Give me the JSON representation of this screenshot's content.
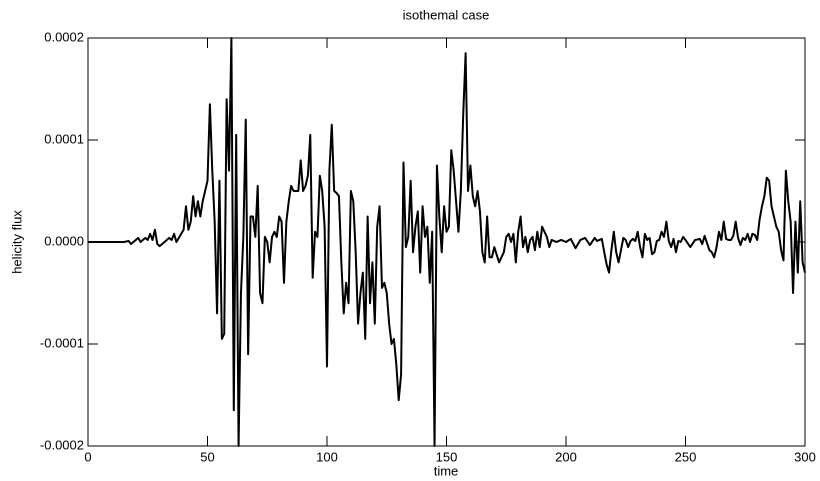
{
  "chart_data": {
    "type": "line",
    "title": "isothemal case",
    "x_label": "time",
    "y_label": "helicity flux",
    "color": "#000000",
    "xlim": [
      0,
      300
    ],
    "xticks": [
      0,
      50,
      100,
      150,
      200,
      250,
      300
    ],
    "ylim": [
      -0.0002,
      0.0002
    ],
    "yticks": [
      {
        "value": -0.0002,
        "label": "-0.0002"
      },
      {
        "value": -0.0001,
        "label": "-0.0001"
      },
      {
        "value": 0,
        "label": "0.0000"
      },
      {
        "value": 0.0001,
        "label": "0.0001"
      },
      {
        "value": 0.0002,
        "label": "0.0002"
      }
    ],
    "x": [
      0,
      10,
      15,
      17,
      18,
      20,
      21,
      22,
      24,
      25,
      26,
      27,
      28,
      29,
      30,
      32,
      34,
      35,
      36,
      37,
      38,
      40,
      41,
      42,
      43,
      44,
      45,
      46,
      47,
      48,
      49,
      50,
      51,
      52,
      53,
      54,
      55,
      56,
      57,
      58,
      59,
      60,
      61,
      62,
      63,
      64,
      65,
      66,
      67,
      68,
      69,
      70,
      71,
      72,
      73,
      74,
      75,
      76,
      77,
      78,
      79,
      80,
      81,
      82,
      83,
      84,
      85,
      86,
      88,
      89,
      90,
      91,
      92,
      93,
      94,
      95,
      96,
      97,
      98,
      99,
      100,
      101,
      102,
      103,
      104,
      105,
      106,
      107,
      108,
      109,
      110,
      111,
      112,
      113,
      114,
      115,
      116,
      117,
      118,
      119,
      120,
      121,
      122,
      123,
      124,
      125,
      126,
      127,
      128,
      129,
      130,
      131,
      132,
      133,
      134,
      135,
      136,
      137,
      138,
      139,
      140,
      141,
      142,
      143,
      144,
      145,
      146,
      147,
      148,
      149,
      150,
      151,
      152,
      153,
      154,
      155,
      156,
      157,
      158,
      159,
      160,
      161,
      162,
      163,
      164,
      165,
      166,
      167,
      168,
      169,
      170,
      172,
      174,
      175,
      176,
      177,
      178,
      179,
      180,
      181,
      182,
      183,
      184,
      185,
      186,
      187,
      188,
      189,
      190,
      192,
      193,
      194,
      196,
      198,
      200,
      202,
      204,
      206,
      208,
      210,
      212,
      213,
      215,
      216,
      217,
      218,
      219,
      220,
      221,
      222,
      223,
      224,
      225,
      226,
      227,
      228,
      229,
      230,
      231,
      232,
      233,
      234,
      235,
      236,
      237,
      238,
      239,
      240,
      241,
      242,
      243,
      244,
      245,
      246,
      247,
      248,
      249,
      250,
      252,
      254,
      256,
      257,
      258,
      260,
      261,
      262,
      263,
      264,
      265,
      266,
      267,
      268,
      269,
      270,
      271,
      272,
      273,
      274,
      275,
      276,
      277,
      278,
      279,
      280,
      281,
      282,
      283,
      284,
      285,
      286,
      287,
      288,
      289,
      290,
      291,
      292,
      293,
      294,
      295,
      296,
      297,
      298,
      299,
      300
    ],
    "values": [
      0,
      0,
      0,
      1e-06,
      -2e-06,
      2e-06,
      4e-06,
      0,
      4e-06,
      2e-06,
      8e-06,
      2e-06,
      1.2e-05,
      -2e-06,
      -4e-06,
      0,
      4e-06,
      2e-06,
      8e-06,
      0,
      4e-06,
      1.2e-05,
      3.5e-05,
      1.2e-05,
      2e-05,
      4.5e-05,
      2.5e-05,
      4e-05,
      2.5e-05,
      4e-05,
      5e-05,
      6e-05,
      0.000135,
      7e-05,
      2e-05,
      -7e-05,
      6e-05,
      -9.5e-05,
      -9e-05,
      0.00014,
      7e-05,
      0.0002,
      -0.000165,
      0.000105,
      -0.0002,
      -5e-05,
      5e-06,
      0.00012,
      -0.00011,
      2.5e-05,
      2.5e-05,
      5e-06,
      5.5e-05,
      -5e-05,
      -6e-05,
      5e-06,
      0,
      -2e-05,
      5e-06,
      1e-05,
      5e-06,
      2.5e-05,
      2e-05,
      -4e-05,
      2e-05,
      4e-05,
      5.5e-05,
      5e-05,
      5e-05,
      8e-05,
      5e-05,
      5.5e-05,
      6.5e-05,
      0.000105,
      -3.5e-05,
      1e-05,
      5e-06,
      6.5e-05,
      5e-05,
      1.5e-05,
      -0.000122,
      7e-05,
      0.000115,
      5e-05,
      4.8e-05,
      4.5e-05,
      -2e-05,
      -7e-05,
      -4e-05,
      -6e-05,
      5e-05,
      4e-05,
      -1e-05,
      -8e-05,
      -5e-05,
      -3e-05,
      -9.5e-05,
      2.5e-05,
      -6e-05,
      -2e-05,
      -8e-05,
      1.5e-05,
      3.5e-05,
      -4.5e-05,
      -4e-05,
      -5e-05,
      -8e-05,
      -0.0001,
      -9.5e-05,
      -0.00012,
      -0.000155,
      -0.00013,
      7.8e-05,
      -5e-06,
      5e-06,
      6e-05,
      -1e-05,
      1.5e-05,
      3e-05,
      -3e-05,
      3.5e-05,
      5e-06,
      1.5e-05,
      -4e-05,
      1e-05,
      -0.0002,
      7.5e-05,
      2.5e-05,
      -1e-05,
      3.5e-05,
      1e-05,
      1.5e-05,
      9e-05,
      7e-05,
      4e-05,
      1e-05,
      5e-05,
      0.000125,
      0.000185,
      5e-05,
      7.5e-05,
      4.5e-05,
      3.5e-05,
      5e-05,
      3e-05,
      -1e-05,
      -2e-05,
      2.5e-05,
      -1.5e-05,
      -1.5e-05,
      -5e-06,
      -2e-05,
      -1e-05,
      5e-06,
      8e-06,
      0,
      8e-06,
      -2e-05,
      1e-05,
      2.5e-05,
      -5e-06,
      5e-06,
      -1e-05,
      2e-06,
      5e-06,
      -8e-06,
      1e-05,
      -5e-06,
      1.5e-05,
      5e-06,
      -5e-06,
      2e-06,
      0,
      2e-06,
      0,
      3e-06,
      -6e-06,
      2e-06,
      4e-06,
      -3e-06,
      4e-06,
      1e-06,
      3e-06,
      -1e-05,
      -2.2e-05,
      -3e-05,
      -8e-06,
      1e-05,
      -1e-05,
      -2e-05,
      -8e-06,
      4e-06,
      2e-06,
      -5e-06,
      1e-06,
      3e-06,
      1e-06,
      1e-05,
      -5e-06,
      -1.5e-05,
      8e-06,
      2e-06,
      4e-06,
      -1.2e-05,
      -1e-05,
      1e-06,
      2e-06,
      1e-05,
      5e-06,
      2e-05,
      1e-06,
      -5e-06,
      3e-06,
      -1e-05,
      1e-06,
      0,
      5e-06,
      2e-06,
      -5e-06,
      2e-06,
      3e-06,
      -2e-06,
      6e-06,
      -8e-06,
      -1e-05,
      -1.5e-05,
      -5e-06,
      1e-05,
      2e-06,
      2e-05,
      3e-06,
      2e-06,
      2e-06,
      6e-06,
      2e-05,
      4e-06,
      -3e-06,
      4e-06,
      2e-06,
      8e-06,
      0,
      8e-06,
      7e-06,
      2e-06,
      2.2e-05,
      3.5e-05,
      4.5e-05,
      6.3e-05,
      6e-05,
      3.5e-05,
      2.5e-05,
      1.5e-05,
      1e-05,
      -8e-06,
      -1.8e-05,
      7e-05,
      4e-05,
      2e-05,
      -5e-05,
      2e-05,
      -3e-05,
      4e-05,
      -2e-05,
      -3e-05
    ]
  }
}
